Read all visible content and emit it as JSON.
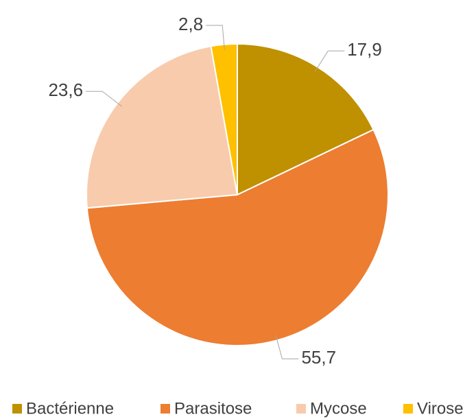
{
  "chart_data": {
    "type": "pie",
    "categories": [
      "Bactérienne",
      "Parasitose",
      "Mycose",
      "Virose"
    ],
    "values": [
      17.9,
      55.7,
      23.6,
      2.8
    ],
    "value_labels": [
      "17,9",
      "55,7",
      "23,6",
      "2,8"
    ],
    "colors": [
      "#BF9000",
      "#ED7D31",
      "#F8CBAD",
      "#FFC000"
    ],
    "legend": "bottom"
  }
}
